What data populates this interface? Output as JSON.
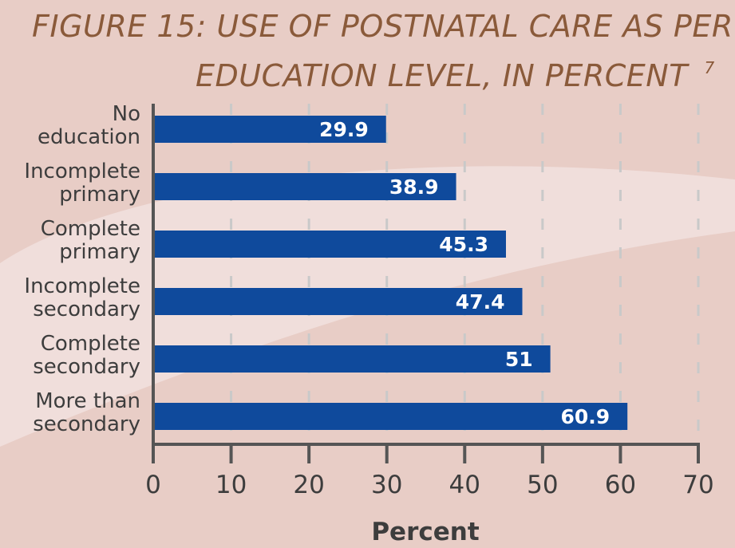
{
  "colors": {
    "background": "#e8cdc6",
    "background_swoosh": "#f0dedb",
    "title": "#8a5a3a",
    "bar": "#0f4a9c",
    "axis": "#555555",
    "grid": "#c9c9c9",
    "text": "#3d3d3d",
    "value_text": "#ffffff"
  },
  "chart_data": {
    "type": "bar",
    "orientation": "horizontal",
    "title_line1": "FIGURE 15: USE OF POSTNATAL CARE AS PER",
    "title_line2": "EDUCATION LEVEL, IN PERCENT",
    "title_superscript": "7",
    "categories": [
      [
        "No",
        "education"
      ],
      [
        "Incomplete",
        "primary"
      ],
      [
        "Complete",
        "primary"
      ],
      [
        "Incomplete",
        "secondary"
      ],
      [
        "Complete",
        "secondary"
      ],
      [
        "More than",
        "secondary"
      ]
    ],
    "values": [
      29.9,
      38.9,
      45.3,
      47.4,
      51,
      60.9
    ],
    "value_labels": [
      "29.9",
      "38.9",
      "45.3",
      "47.4",
      "51",
      "60.9"
    ],
    "xlabel": "Percent",
    "xlim": [
      0,
      70
    ],
    "xticks": [
      0,
      10,
      20,
      30,
      40,
      50,
      60,
      70
    ],
    "grid": "vertical dashed",
    "legend": "none"
  }
}
